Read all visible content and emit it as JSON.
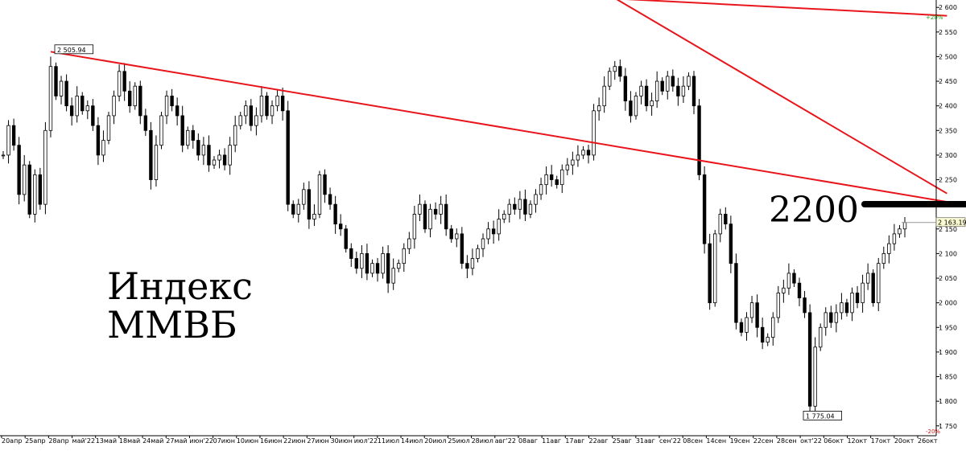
{
  "chart_data": {
    "type": "candlestick",
    "title_lines": [
      "Индекс",
      "ММВБ"
    ],
    "y_ticks": [
      2600,
      2550,
      2500,
      2450,
      2400,
      2350,
      2300,
      2250,
      2200,
      2150,
      2100,
      2050,
      2000,
      1950,
      1900,
      1850,
      1800,
      1750
    ],
    "y_tick_labels": [
      "2 600",
      "2 550",
      "2 500",
      "2 450",
      "2 400",
      "2 350",
      "2 300",
      "2 250",
      "2 200",
      "2 150",
      "2 100",
      "2 050",
      "2 000",
      "1 950",
      "1 900",
      "1 850",
      "1 800",
      "1 750"
    ],
    "ylim": [
      1730,
      2615
    ],
    "x_labels": [
      "20апр",
      "25апр",
      "28апр",
      "май'22",
      "13май",
      "18май",
      "24май",
      "27май",
      "июн'22",
      "07июн",
      "10июн",
      "16июн",
      "22июн",
      "27июн",
      "30июн",
      "июл'22",
      "11июл",
      "14июл",
      "20июл",
      "25июл",
      "28июл",
      "авг'22",
      "08авг",
      "11авг",
      "17авг",
      "22авг",
      "25авг",
      "31авг",
      "сен'22",
      "08сен",
      "14сен",
      "19сен",
      "22сен",
      "28сен",
      "окт'22",
      "06окт",
      "12окт",
      "17окт",
      "20окт",
      "26окт"
    ],
    "closes": [
      2300,
      2360,
      2320,
      2220,
      2280,
      2180,
      2260,
      2200,
      2350,
      2480,
      2420,
      2450,
      2400,
      2380,
      2420,
      2390,
      2400,
      2360,
      2300,
      2330,
      2380,
      2420,
      2470,
      2430,
      2400,
      2440,
      2380,
      2350,
      2250,
      2320,
      2380,
      2420,
      2400,
      2380,
      2320,
      2350,
      2330,
      2300,
      2320,
      2280,
      2290,
      2300,
      2280,
      2320,
      2360,
      2380,
      2400,
      2360,
      2380,
      2420,
      2380,
      2400,
      2420,
      2390,
      2200,
      2180,
      2200,
      2230,
      2170,
      2180,
      2260,
      2220,
      2200,
      2160,
      2150,
      2110,
      2090,
      2070,
      2100,
      2060,
      2080,
      2060,
      2100,
      2040,
      2070,
      2080,
      2110,
      2130,
      2180,
      2200,
      2150,
      2190,
      2180,
      2200,
      2150,
      2130,
      2140,
      2080,
      2070,
      2090,
      2110,
      2130,
      2150,
      2140,
      2170,
      2180,
      2200,
      2190,
      2210,
      2180,
      2200,
      2220,
      2240,
      2260,
      2250,
      2240,
      2270,
      2280,
      2290,
      2300,
      2310,
      2300,
      2390,
      2400,
      2440,
      2470,
      2480,
      2460,
      2410,
      2380,
      2420,
      2440,
      2400,
      2410,
      2450,
      2430,
      2460,
      2440,
      2420,
      2440,
      2460,
      2400,
      2260,
      2120,
      2000,
      2140,
      2180,
      2160,
      2080,
      1960,
      1940,
      1970,
      2000,
      1950,
      1920,
      1930,
      1970,
      2020,
      2030,
      2060,
      2040,
      2010,
      1980,
      1790,
      1910,
      1950,
      1980,
      1960,
      1980,
      2000,
      1980,
      2020,
      2000,
      2040,
      2060,
      2000,
      2080,
      2100,
      2120,
      2140,
      2150,
      2163.19
    ],
    "annotations": [
      {
        "text": "2 505.94",
        "value": 2505.94,
        "kind": "high"
      },
      {
        "text": "1 775.04",
        "value": 1775.04,
        "kind": "low"
      },
      {
        "text": "2 163.19",
        "value": 2163.19,
        "kind": "last"
      }
    ],
    "percent_labels": {
      "top": "+20%",
      "bottom": "-20%"
    },
    "level_label": "2200",
    "trendlines": [
      {
        "from": {
          "x_idx": 9,
          "y": 2510
        },
        "to": {
          "x_idx": 179,
          "y": 2205
        }
      },
      {
        "from": {
          "x_idx": 115,
          "y": 2625
        },
        "to": {
          "x_idx": 179,
          "y": 2222
        }
      },
      {
        "from": {
          "x_idx": 103,
          "y": 2625
        },
        "to": {
          "x_idx": 179,
          "y": 2583
        }
      }
    ],
    "colors": {
      "trendline": "#e8151b",
      "candle": "#000000",
      "up_pct": "#1aa31a",
      "down_pct": "#d81313",
      "level_marker": "#000000"
    },
    "grid": false
  }
}
